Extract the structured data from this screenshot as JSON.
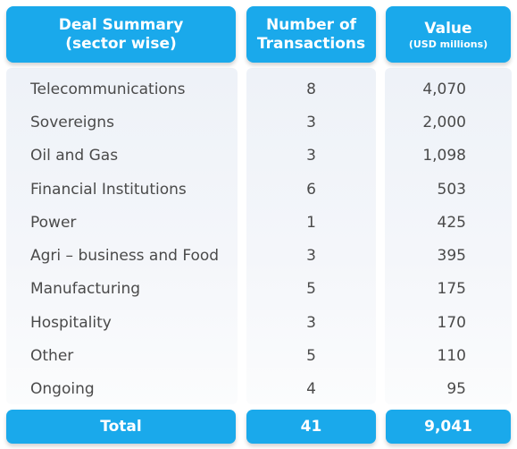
{
  "headers": {
    "sector_line1": "Deal Summary",
    "sector_line2": "(sector wise)",
    "count_line1": "Number of",
    "count_line2": "Transactions",
    "value_line1": "Value",
    "value_line2": "(USD millions)"
  },
  "rows": [
    {
      "sector": "Telecommunications",
      "count": "8",
      "value": "4,070"
    },
    {
      "sector": "Sovereigns",
      "count": "3",
      "value": "2,000"
    },
    {
      "sector": "Oil and Gas",
      "count": "3",
      "value": "1,098"
    },
    {
      "sector": "Financial Institutions",
      "count": "6",
      "value": "503"
    },
    {
      "sector": "Power",
      "count": "1",
      "value": "425"
    },
    {
      "sector": "Agri – business and Food",
      "count": "3",
      "value": "395"
    },
    {
      "sector": "Manufacturing",
      "count": "5",
      "value": "175"
    },
    {
      "sector": "Hospitality",
      "count": "3",
      "value": "170"
    },
    {
      "sector": "Other",
      "count": "5",
      "value": "110"
    },
    {
      "sector": "Ongoing",
      "count": "4",
      "value": "95"
    }
  ],
  "total": {
    "label": "Total",
    "count": "41",
    "value": "9,041"
  },
  "colors": {
    "accent": "#1aa9eb",
    "text": "#4a4a4a",
    "column_bg": "#eef2f8"
  }
}
